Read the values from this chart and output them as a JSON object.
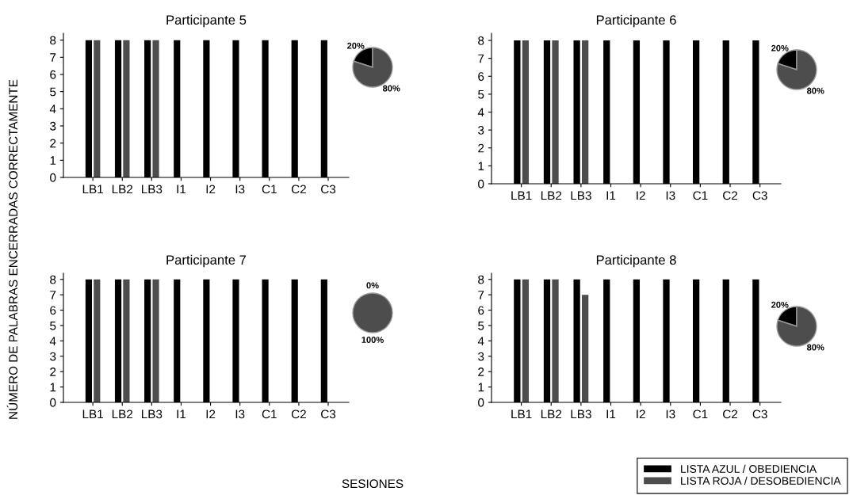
{
  "chart_data": [
    {
      "type": "bar",
      "title": "Participante 5",
      "ylabel": "NÚMERO DE PALABRAS ENCERRADAS CORRECTAMENTE",
      "categories": [
        "LB1",
        "LB2",
        "LB3",
        "I1",
        "I2",
        "I3",
        "C1",
        "C2",
        "C3"
      ],
      "ylim": [
        0,
        8.4
      ],
      "yticks": [
        0,
        1,
        2,
        3,
        4,
        5,
        6,
        7,
        8
      ],
      "grid": false,
      "legend": "bottom right",
      "series": [
        {
          "name": "LISTA AZUL / OBEDIENCIA",
          "color": "#000000",
          "values": [
            8,
            8,
            8,
            8,
            8,
            8,
            8,
            8,
            8
          ]
        },
        {
          "name": "LISTA ROJA / DESOBEDIENCIA",
          "color": "#4d4d4d",
          "values": [
            8,
            8,
            8,
            null,
            null,
            null,
            null,
            null,
            null
          ]
        }
      ]
    },
    {
      "type": "pie",
      "categories": [
        null,
        null
      ],
      "values": [
        20,
        80
      ],
      "colors": [
        "#000000",
        "#4d4d4d"
      ],
      "value_labels": [
        "20%",
        "80%"
      ]
    },
    {
      "type": "bar",
      "title": "Participante 6",
      "categories": [
        "LB1",
        "LB2",
        "LB3",
        "I1",
        "I2",
        "I3",
        "C1",
        "C2",
        "C3"
      ],
      "ylim": [
        0,
        8.4
      ],
      "yticks": [
        0,
        1,
        2,
        3,
        4,
        5,
        6,
        7,
        8
      ],
      "grid": false,
      "series": [
        {
          "color": "#000000",
          "values": [
            8,
            8,
            8,
            8,
            8,
            8,
            8,
            8,
            8
          ]
        },
        {
          "color": "#4d4d4d",
          "values": [
            8,
            8,
            8,
            null,
            null,
            null,
            null,
            null,
            null
          ]
        }
      ]
    },
    {
      "type": "pie",
      "categories": [
        null,
        null
      ],
      "values": [
        20,
        80
      ],
      "colors": [
        "#000000",
        "#4d4d4d"
      ],
      "value_labels": [
        "20%",
        "80%"
      ]
    },
    {
      "type": "bar",
      "title": "Participante 7",
      "xlabel": "SESIONES",
      "categories": [
        "LB1",
        "LB2",
        "LB3",
        "I1",
        "I2",
        "I3",
        "C1",
        "C2",
        "C3"
      ],
      "ylim": [
        0,
        8.4
      ],
      "yticks": [
        0,
        1,
        2,
        3,
        4,
        5,
        6,
        7,
        8
      ],
      "grid": false,
      "series": [
        {
          "color": "#000000",
          "values": [
            8,
            8,
            8,
            8,
            8,
            8,
            8,
            8,
            8
          ]
        },
        {
          "color": "#4d4d4d",
          "values": [
            8,
            8,
            8,
            null,
            null,
            null,
            null,
            null,
            null
          ]
        }
      ]
    },
    {
      "type": "pie",
      "categories": [
        null,
        null
      ],
      "values": [
        0,
        100
      ],
      "colors": [
        "#000000",
        "#4d4d4d"
      ],
      "value_labels": [
        "0%",
        "100%"
      ]
    },
    {
      "type": "bar",
      "title": "Participante 8",
      "categories": [
        "LB1",
        "LB2",
        "LB3",
        "I1",
        "I2",
        "I3",
        "C1",
        "C2",
        "C3"
      ],
      "ylim": [
        0,
        8.4
      ],
      "yticks": [
        0,
        1,
        2,
        3,
        4,
        5,
        6,
        7,
        8
      ],
      "grid": false,
      "series": [
        {
          "color": "#000000",
          "values": [
            8,
            8,
            8,
            8,
            8,
            8,
            8,
            8,
            8
          ]
        },
        {
          "color": "#4d4d4d",
          "values": [
            8,
            8,
            7,
            null,
            null,
            null,
            null,
            null,
            null
          ]
        }
      ]
    },
    {
      "type": "pie",
      "categories": [
        null,
        null
      ],
      "values": [
        20,
        80
      ],
      "colors": [
        "#000000",
        "#4d4d4d"
      ],
      "value_labels": [
        "20%",
        "80%"
      ]
    }
  ]
}
